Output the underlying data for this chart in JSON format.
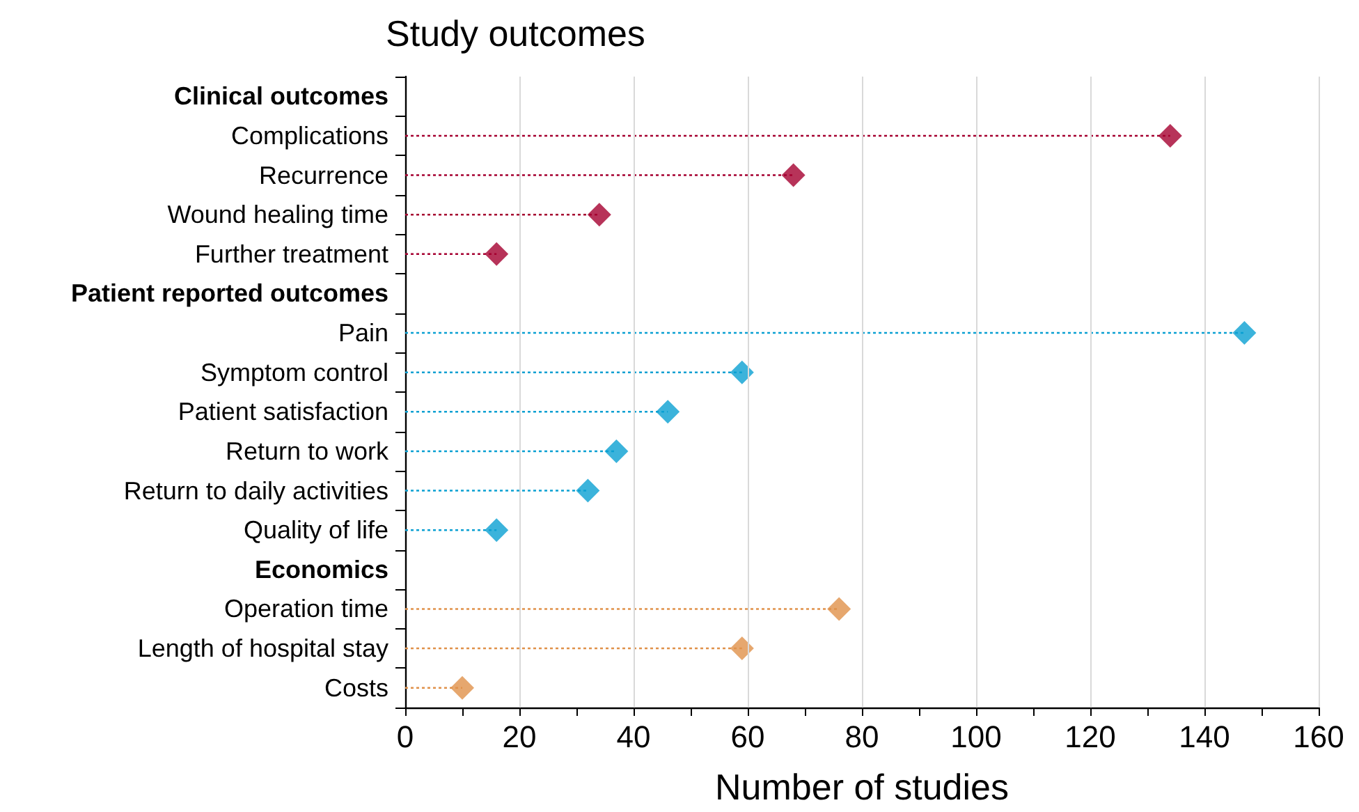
{
  "chart_data": {
    "type": "lollipop",
    "orientation": "horizontal",
    "title": "Study outcomes",
    "xlabel": "Number of studies",
    "categories": [
      "Clinical outcomes",
      "Complications",
      "Recurrence",
      "Wound healing time",
      "Further treatment",
      "Patient reported outcomes",
      "Pain",
      "Symptom control",
      "Patient satisfaction",
      "Return to work",
      "Return to daily activities",
      "Quality of life",
      "Economics",
      "Operation time",
      "Length of hospital stay",
      "Costs"
    ],
    "values": [
      null,
      134,
      68,
      34,
      16,
      null,
      147,
      59,
      46,
      37,
      32,
      16,
      null,
      76,
      59,
      10
    ],
    "colors": [
      null,
      "#a50030",
      "#a50030",
      "#a50030",
      "#a50030",
      null,
      "#0aa0d2",
      "#0aa0d2",
      "#0aa0d2",
      "#0aa0d2",
      "#0aa0d2",
      "#0aa0d2",
      null,
      "#e0914a",
      "#e0914a",
      "#e0914a"
    ],
    "xlim": [
      0,
      160
    ],
    "xticks": [
      0,
      {
        "value": 10,
        "label": null
      },
      20,
      {
        "value": 30,
        "label": null
      },
      40,
      {
        "value": 50,
        "label": null
      },
      60,
      {
        "value": 70,
        "label": null
      },
      80,
      {
        "value": 90,
        "label": null
      },
      100,
      {
        "value": 110,
        "label": null
      },
      120,
      {
        "value": 130,
        "label": null
      },
      140,
      {
        "value": 150,
        "label": null
      },
      160
    ],
    "grid": "x",
    "marker": "diamond",
    "line_style": "dotted"
  }
}
